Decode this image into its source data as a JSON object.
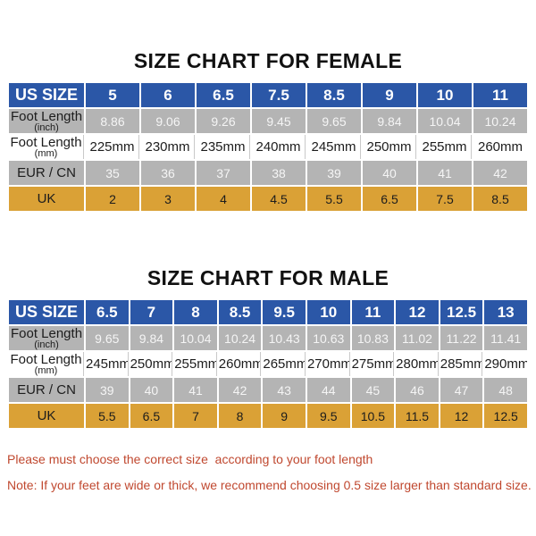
{
  "colors": {
    "header_blue": "#2b57a7",
    "row_gray": "#b4b4b4",
    "row_orange": "#daa136",
    "note_red": "#c0482f",
    "title_black": "#111111",
    "value_white": "#f5f5f5",
    "dark_text": "#1c1c1c"
  },
  "female": {
    "title": "SIZE CHART FOR FEMALE",
    "header": {
      "label": "US SIZE",
      "values": [
        "5",
        "6",
        "6.5",
        "7.5",
        "8.5",
        "9",
        "10",
        "11"
      ]
    },
    "rows": [
      {
        "id": "foot-length-inch",
        "type": "gray",
        "label": "Foot Length",
        "sublabel": "(inch)",
        "values": [
          "8.86",
          "9.06",
          "9.26",
          "9.45",
          "9.65",
          "9.84",
          "10.04",
          "10.24"
        ]
      },
      {
        "id": "foot-length-mm",
        "type": "white",
        "label": "Foot Length",
        "sublabel": "(mm)",
        "values": [
          "225mm",
          "230mm",
          "235mm",
          "240mm",
          "245mm",
          "250mm",
          "255mm",
          "260mm"
        ]
      },
      {
        "id": "eur-cn",
        "type": "gray",
        "label": "EUR / CN",
        "values": [
          "35",
          "36",
          "37",
          "38",
          "39",
          "40",
          "41",
          "42"
        ]
      },
      {
        "id": "uk",
        "type": "orange",
        "label": "UK",
        "values": [
          "2",
          "3",
          "4",
          "4.5",
          "5.5",
          "6.5",
          "7.5",
          "8.5"
        ]
      }
    ]
  },
  "male": {
    "title": "SIZE CHART FOR MALE",
    "header": {
      "label": "US SIZE",
      "values": [
        "6.5",
        "7",
        "8",
        "8.5",
        "9.5",
        "10",
        "11",
        "12",
        "12.5",
        "13"
      ]
    },
    "rows": [
      {
        "id": "foot-length-inch",
        "type": "gray",
        "label": "Foot Length",
        "sublabel": "(inch)",
        "values": [
          "9.65",
          "9.84",
          "10.04",
          "10.24",
          "10.43",
          "10.63",
          "10.83",
          "11.02",
          "11.22",
          "11.41"
        ]
      },
      {
        "id": "foot-length-mm",
        "type": "white",
        "label": "Foot Length",
        "sublabel": "(mm)",
        "values": [
          "245mm",
          "250mm",
          "255mm",
          "260mm",
          "265mm",
          "270mm",
          "275mm",
          "280mm",
          "285mm",
          "290mm"
        ]
      },
      {
        "id": "eur-cn",
        "type": "gray",
        "label": "EUR / CN",
        "values": [
          "39",
          "40",
          "41",
          "42",
          "43",
          "44",
          "45",
          "46",
          "47",
          "48"
        ]
      },
      {
        "id": "uk",
        "type": "orange",
        "label": "UK",
        "values": [
          "5.5",
          "6.5",
          "7",
          "8",
          "9",
          "9.5",
          "10.5",
          "11.5",
          "12",
          "12.5"
        ]
      }
    ]
  },
  "notes": [
    "Please must choose the correct size  according to your foot length",
    "Note: If your feet are wide or thick, we recommend choosing 0.5 size larger than standard size."
  ]
}
